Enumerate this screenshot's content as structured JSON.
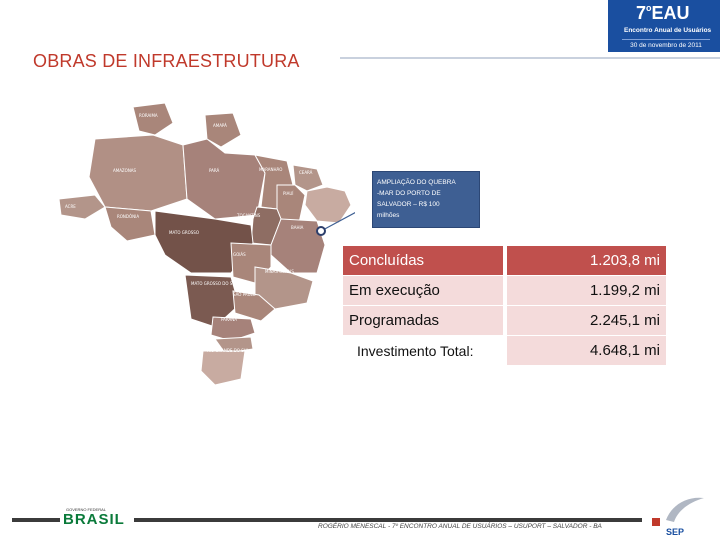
{
  "header": {
    "title": "OBRAS DE INFRAESTRUTURA",
    "logo": {
      "main": "7",
      "main_sup": "o",
      "main_rest": "EAU",
      "subtitle": "Encontro Anual de Usuários",
      "date": "30 de novembro de 2011"
    }
  },
  "map": {
    "states": [
      "RORAIMA",
      "AMAPÁ",
      "AMAZONAS",
      "PARÁ",
      "MARANHÃO",
      "CEARÁ",
      "PIAUÍ",
      "ACRE",
      "RONDÔNIA",
      "TOCANTINS",
      "BAHIA",
      "MATO GROSSO",
      "GOIÁS",
      "MINAS GERAIS",
      "MATO GROSSO DO SUL",
      "SÃO PAULO",
      "PARANÁ",
      "RIO GRANDE DO SUL"
    ]
  },
  "callout": {
    "lines": [
      "AMPLIAÇÃO DO QUEBRA",
      "-MAR DO PORTO DE",
      "SALVADOR – R$ 100",
      "milhões"
    ]
  },
  "investments": {
    "rows": [
      {
        "label": "Concluídas",
        "value": "1.203,8 mi"
      },
      {
        "label": "Em execução",
        "value": "1.199,2 mi"
      },
      {
        "label": "Programadas",
        "value": "2.245,1 mi"
      }
    ],
    "total": {
      "label": "Investimento Total:",
      "value": "4.648,1 mi"
    }
  },
  "footer": {
    "text": "ROGÉRIO MENESCAL - 7º ENCONTRO ANUAL DE USUÁRIOS – USUPORT – SALVADOR - BA",
    "brasil_top": "GOVERNO FEDERAL",
    "brasil": "BRASIL",
    "sep": "SEP"
  }
}
